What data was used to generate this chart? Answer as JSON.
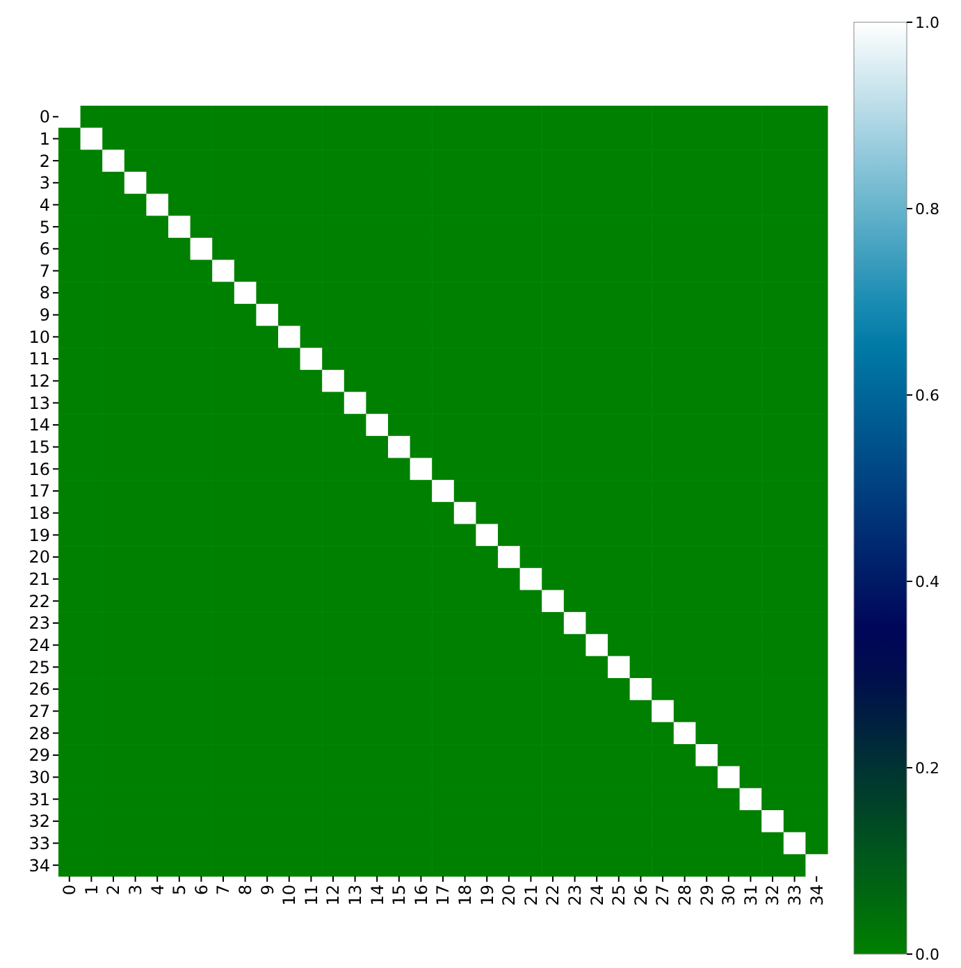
{
  "chart_data": {
    "type": "heatmap",
    "categories": [
      "0",
      "1",
      "2",
      "3",
      "4",
      "5",
      "6",
      "7",
      "8",
      "9",
      "10",
      "11",
      "12",
      "13",
      "14",
      "15",
      "16",
      "17",
      "18",
      "19",
      "20",
      "21",
      "22",
      "23",
      "24",
      "25",
      "26",
      "27",
      "28",
      "29",
      "30",
      "31",
      "32",
      "33",
      "34"
    ],
    "y_categories": [
      "0",
      "1",
      "2",
      "3",
      "4",
      "5",
      "6",
      "7",
      "8",
      "9",
      "10",
      "11",
      "12",
      "13",
      "14",
      "15",
      "16",
      "17",
      "18",
      "19",
      "20",
      "21",
      "22",
      "23",
      "24",
      "25",
      "26",
      "27",
      "28",
      "29",
      "30",
      "31",
      "32",
      "33",
      "34"
    ],
    "cells": [
      [
        1,
        0,
        0,
        0,
        0,
        0,
        0,
        0,
        0,
        0,
        0,
        0,
        0,
        0,
        0,
        0,
        0,
        0,
        0,
        0,
        0,
        0,
        0,
        0,
        0,
        0,
        0,
        0,
        0,
        0,
        0,
        0,
        0,
        0,
        0
      ],
      [
        0,
        1,
        0,
        0,
        0,
        0,
        0,
        0,
        0,
        0,
        0,
        0,
        0,
        0,
        0,
        0,
        0,
        0,
        0,
        0,
        0,
        0,
        0,
        0,
        0,
        0,
        0,
        0,
        0,
        0,
        0,
        0,
        0,
        0,
        0
      ],
      [
        0,
        0,
        1,
        0,
        0,
        0,
        0,
        0,
        0,
        0,
        0,
        0,
        0,
        0,
        0,
        0,
        0,
        0,
        0,
        0,
        0,
        0,
        0,
        0,
        0,
        0,
        0,
        0,
        0,
        0,
        0,
        0,
        0,
        0,
        0
      ],
      [
        0,
        0,
        0,
        1,
        0,
        0,
        0,
        0,
        0,
        0,
        0,
        0,
        0,
        0,
        0,
        0,
        0,
        0,
        0,
        0,
        0,
        0,
        0,
        0,
        0,
        0,
        0,
        0,
        0,
        0,
        0,
        0,
        0,
        0,
        0
      ],
      [
        0,
        0,
        0,
        0,
        1,
        0,
        0,
        0,
        0,
        0,
        0,
        0,
        0,
        0,
        0,
        0,
        0,
        0,
        0,
        0,
        0,
        0,
        0,
        0,
        0,
        0,
        0,
        0,
        0,
        0,
        0,
        0,
        0,
        0,
        0
      ],
      [
        0,
        0,
        0,
        0,
        0,
        1,
        0,
        0,
        0,
        0,
        0,
        0,
        0,
        0,
        0,
        0,
        0,
        0,
        0,
        0,
        0,
        0,
        0,
        0,
        0,
        0,
        0,
        0,
        0,
        0,
        0,
        0,
        0,
        0,
        0
      ],
      [
        0,
        0,
        0,
        0,
        0,
        0,
        1,
        0,
        0,
        0,
        0,
        0,
        0,
        0,
        0,
        0,
        0,
        0,
        0,
        0,
        0,
        0,
        0,
        0,
        0,
        0,
        0,
        0,
        0,
        0,
        0,
        0,
        0,
        0,
        0
      ],
      [
        0,
        0,
        0,
        0,
        0,
        0,
        0,
        1,
        0,
        0,
        0,
        0,
        0,
        0,
        0,
        0,
        0,
        0,
        0,
        0,
        0,
        0,
        0,
        0,
        0,
        0,
        0,
        0,
        0,
        0,
        0,
        0,
        0,
        0,
        0
      ],
      [
        0,
        0,
        0,
        0,
        0,
        0,
        0,
        0,
        1,
        0,
        0,
        0,
        0,
        0,
        0,
        0,
        0,
        0,
        0,
        0,
        0,
        0,
        0,
        0,
        0,
        0,
        0,
        0,
        0,
        0,
        0,
        0,
        0,
        0,
        0
      ],
      [
        0,
        0,
        0,
        0,
        0,
        0,
        0,
        0,
        0,
        1,
        0,
        0,
        0,
        0,
        0,
        0,
        0,
        0,
        0,
        0,
        0,
        0,
        0,
        0,
        0,
        0,
        0,
        0,
        0,
        0,
        0,
        0,
        0,
        0,
        0
      ],
      [
        0,
        0,
        0,
        0,
        0,
        0,
        0,
        0,
        0,
        0,
        1,
        0,
        0,
        0,
        0,
        0,
        0,
        0,
        0,
        0,
        0,
        0,
        0,
        0,
        0,
        0,
        0,
        0,
        0,
        0,
        0,
        0,
        0,
        0,
        0
      ],
      [
        0,
        0,
        0,
        0,
        0,
        0,
        0,
        0,
        0,
        0,
        0,
        1,
        0,
        0,
        0,
        0,
        0,
        0,
        0,
        0,
        0,
        0,
        0,
        0,
        0,
        0,
        0,
        0,
        0,
        0,
        0,
        0,
        0,
        0,
        0
      ],
      [
        0,
        0,
        0,
        0,
        0,
        0,
        0,
        0,
        0,
        0,
        0,
        0,
        1,
        0,
        0,
        0,
        0,
        0,
        0,
        0,
        0,
        0,
        0,
        0,
        0,
        0,
        0,
        0,
        0,
        0,
        0,
        0,
        0,
        0,
        0
      ],
      [
        0,
        0,
        0,
        0,
        0,
        0,
        0,
        0,
        0,
        0,
        0,
        0,
        0,
        1,
        0,
        0,
        0,
        0,
        0,
        0,
        0,
        0,
        0,
        0,
        0,
        0,
        0,
        0,
        0,
        0,
        0,
        0,
        0,
        0,
        0
      ],
      [
        0,
        0,
        0,
        0,
        0,
        0,
        0,
        0,
        0,
        0,
        0,
        0,
        0,
        0,
        1,
        0,
        0,
        0,
        0,
        0,
        0,
        0,
        0,
        0,
        0,
        0,
        0,
        0,
        0,
        0,
        0,
        0,
        0,
        0,
        0
      ],
      [
        0,
        0,
        0,
        0,
        0,
        0,
        0,
        0,
        0,
        0,
        0,
        0,
        0,
        0,
        0,
        1,
        0,
        0,
        0,
        0,
        0,
        0,
        0,
        0,
        0,
        0,
        0,
        0,
        0,
        0,
        0,
        0,
        0,
        0,
        0
      ],
      [
        0,
        0,
        0,
        0,
        0,
        0,
        0,
        0,
        0,
        0,
        0,
        0,
        0,
        0,
        0,
        0,
        1,
        0,
        0,
        0,
        0,
        0,
        0,
        0,
        0,
        0,
        0,
        0,
        0,
        0,
        0,
        0,
        0,
        0,
        0
      ],
      [
        0,
        0,
        0,
        0,
        0,
        0,
        0,
        0,
        0,
        0,
        0,
        0,
        0,
        0,
        0,
        0,
        0,
        1,
        0,
        0,
        0,
        0,
        0,
        0,
        0,
        0,
        0,
        0,
        0,
        0,
        0,
        0,
        0,
        0,
        0
      ],
      [
        0,
        0,
        0,
        0,
        0,
        0,
        0,
        0,
        0,
        0,
        0,
        0,
        0,
        0,
        0,
        0,
        0,
        0,
        1,
        0,
        0,
        0,
        0,
        0,
        0,
        0,
        0,
        0,
        0,
        0,
        0,
        0,
        0,
        0,
        0
      ],
      [
        0,
        0,
        0,
        0,
        0,
        0,
        0,
        0,
        0,
        0,
        0,
        0,
        0,
        0,
        0,
        0,
        0,
        0,
        0,
        1,
        0,
        0,
        0,
        0,
        0,
        0,
        0,
        0,
        0,
        0,
        0,
        0,
        0,
        0,
        0
      ],
      [
        0,
        0,
        0,
        0,
        0,
        0,
        0,
        0,
        0,
        0,
        0,
        0,
        0,
        0,
        0,
        0,
        0,
        0,
        0,
        0,
        1,
        0,
        0,
        0,
        0,
        0,
        0,
        0,
        0,
        0,
        0,
        0,
        0,
        0,
        0
      ],
      [
        0,
        0,
        0,
        0,
        0,
        0,
        0,
        0,
        0,
        0,
        0,
        0,
        0,
        0,
        0,
        0,
        0,
        0,
        0,
        0,
        0,
        1,
        0,
        0,
        0,
        0,
        0,
        0,
        0,
        0,
        0,
        0,
        0,
        0,
        0
      ],
      [
        0,
        0,
        0,
        0,
        0,
        0,
        0,
        0,
        0,
        0,
        0,
        0,
        0,
        0,
        0,
        0,
        0,
        0,
        0,
        0,
        0,
        0,
        1,
        0,
        0,
        0,
        0,
        0,
        0,
        0,
        0,
        0,
        0,
        0,
        0
      ],
      [
        0,
        0,
        0,
        0,
        0,
        0,
        0,
        0,
        0,
        0,
        0,
        0,
        0,
        0,
        0,
        0,
        0,
        0,
        0,
        0,
        0,
        0,
        0,
        1,
        0,
        0,
        0,
        0,
        0,
        0,
        0,
        0,
        0,
        0,
        0
      ],
      [
        0,
        0,
        0,
        0,
        0,
        0,
        0,
        0,
        0,
        0,
        0,
        0,
        0,
        0,
        0,
        0,
        0,
        0,
        0,
        0,
        0,
        0,
        0,
        0,
        1,
        0,
        0,
        0,
        0,
        0,
        0,
        0,
        0,
        0,
        0
      ],
      [
        0,
        0,
        0,
        0,
        0,
        0,
        0,
        0,
        0,
        0,
        0,
        0,
        0,
        0,
        0,
        0,
        0,
        0,
        0,
        0,
        0,
        0,
        0,
        0,
        0,
        1,
        0,
        0,
        0,
        0,
        0,
        0,
        0,
        0,
        0
      ],
      [
        0,
        0,
        0,
        0,
        0,
        0,
        0,
        0,
        0,
        0,
        0,
        0,
        0,
        0,
        0,
        0,
        0,
        0,
        0,
        0,
        0,
        0,
        0,
        0,
        0,
        0,
        1,
        0,
        0,
        0,
        0,
        0,
        0,
        0,
        0
      ],
      [
        0,
        0,
        0,
        0,
        0,
        0,
        0,
        0,
        0,
        0,
        0,
        0,
        0,
        0,
        0,
        0,
        0,
        0,
        0,
        0,
        0,
        0,
        0,
        0,
        0,
        0,
        0,
        1,
        0,
        0,
        0,
        0,
        0,
        0,
        0
      ],
      [
        0,
        0,
        0,
        0,
        0,
        0,
        0,
        0,
        0,
        0,
        0,
        0,
        0,
        0,
        0,
        0,
        0,
        0,
        0,
        0,
        0,
        0,
        0,
        0,
        0,
        0,
        0,
        0,
        1,
        0,
        0,
        0,
        0,
        0,
        0
      ],
      [
        0,
        0,
        0,
        0,
        0,
        0,
        0,
        0,
        0,
        0,
        0,
        0,
        0,
        0,
        0,
        0,
        0,
        0,
        0,
        0,
        0,
        0,
        0,
        0,
        0,
        0,
        0,
        0,
        0,
        1,
        0,
        0,
        0,
        0,
        0
      ],
      [
        0,
        0,
        0,
        0,
        0,
        0,
        0,
        0,
        0,
        0,
        0,
        0,
        0,
        0,
        0,
        0,
        0,
        0,
        0,
        0,
        0,
        0,
        0,
        0,
        0,
        0,
        0,
        0,
        0,
        0,
        1,
        0,
        0,
        0,
        0
      ],
      [
        0,
        0,
        0,
        0,
        0,
        0,
        0,
        0,
        0,
        0,
        0,
        0,
        0,
        0,
        0,
        0,
        0,
        0,
        0,
        0,
        0,
        0,
        0,
        0,
        0,
        0,
        0,
        0,
        0,
        0,
        0,
        1,
        0,
        0,
        0
      ],
      [
        0,
        0,
        0,
        0,
        0,
        0,
        0,
        0,
        0,
        0,
        0,
        0,
        0,
        0,
        0,
        0,
        0,
        0,
        0,
        0,
        0,
        0,
        0,
        0,
        0,
        0,
        0,
        0,
        0,
        0,
        0,
        0,
        1,
        0,
        0
      ],
      [
        0,
        0,
        0,
        0,
        0,
        0,
        0,
        0,
        0,
        0,
        0,
        0,
        0,
        0,
        0,
        0,
        0,
        0,
        0,
        0,
        0,
        0,
        0,
        0,
        0,
        0,
        0,
        0,
        0,
        0,
        0,
        0,
        0,
        1,
        0
      ],
      [
        0,
        0,
        0,
        0,
        0,
        0,
        0,
        0,
        0,
        0,
        0,
        0,
        0,
        0,
        0,
        0,
        0,
        0,
        0,
        0,
        0,
        0,
        0,
        0,
        0,
        0,
        0,
        0,
        0,
        0,
        0,
        0,
        0,
        0,
        1
      ]
    ],
    "clim": [
      0,
      1
    ],
    "cticks": [
      {
        "value": 0,
        "label": "0.0"
      },
      {
        "value": 0.2,
        "label": "0.2"
      },
      {
        "value": 0.4,
        "label": "0.4"
      },
      {
        "value": 0.6,
        "label": "0.6"
      },
      {
        "value": 0.8,
        "label": "0.8"
      },
      {
        "value": 1,
        "label": "1.0"
      }
    ]
  }
}
